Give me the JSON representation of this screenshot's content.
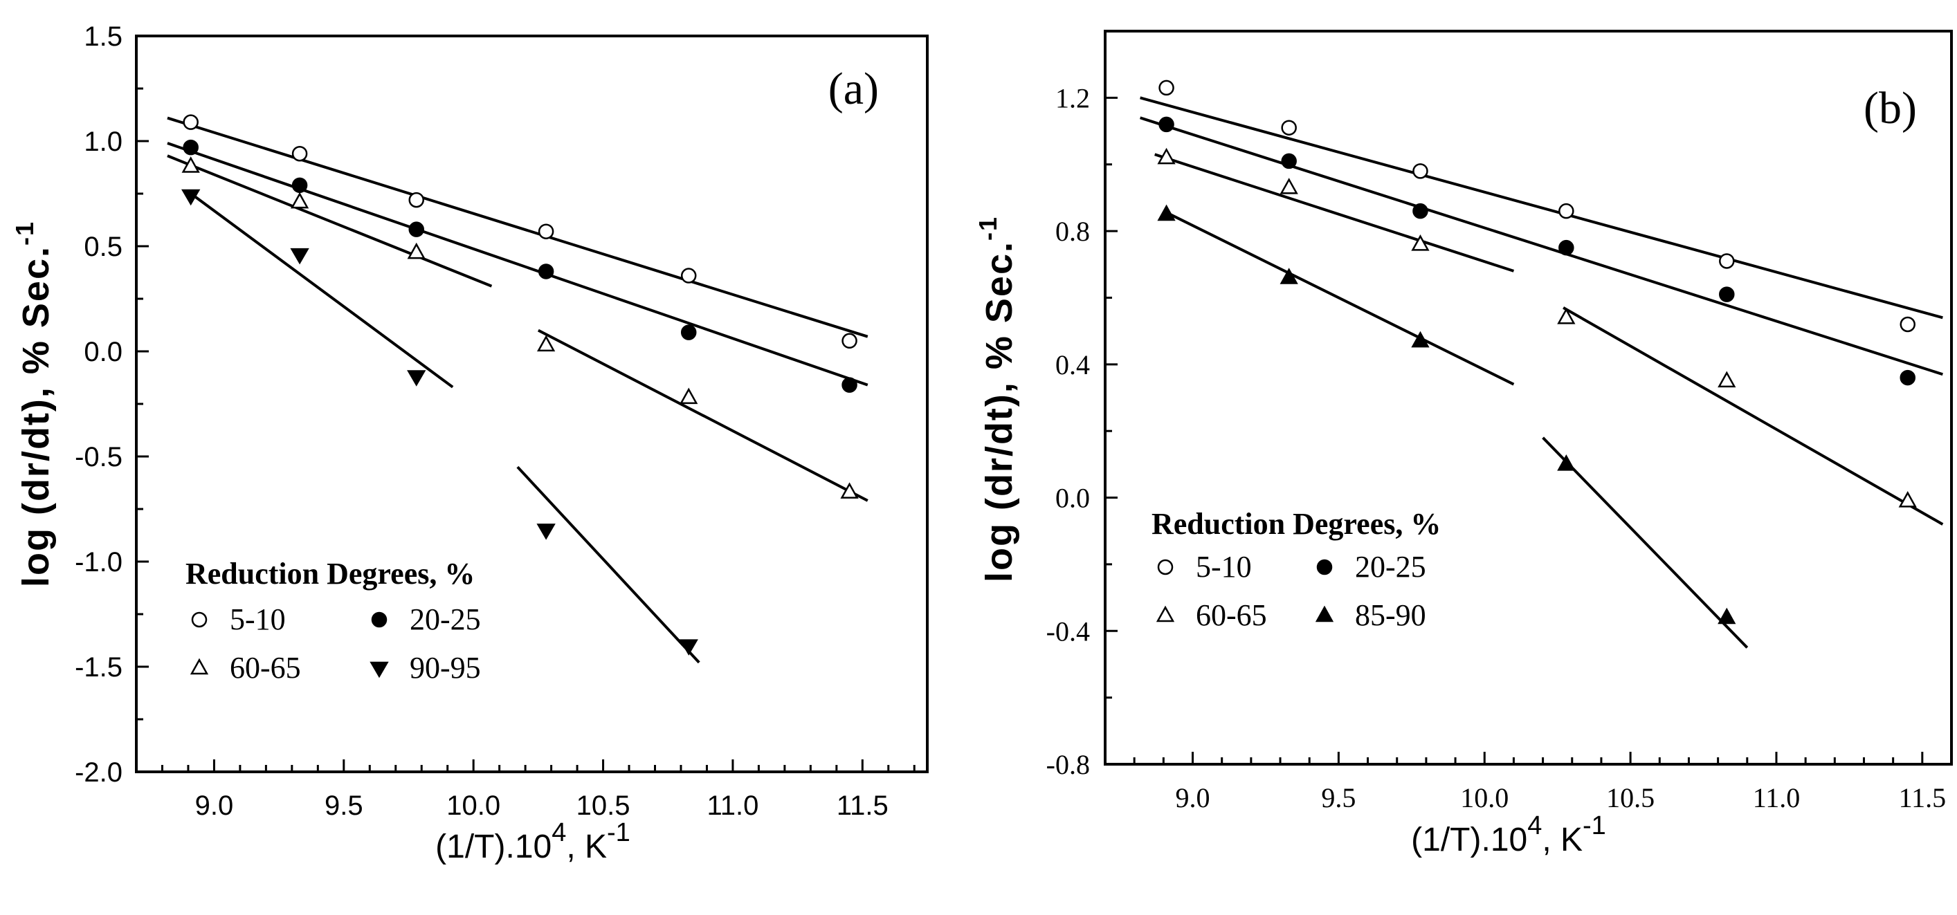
{
  "chart_data": [
    {
      "type": "scatter",
      "panel_label": "(a)",
      "xlabel": "(1/T).10",
      "xlabel_sup": "4",
      "xlabel_unit": ", K",
      "xlabel_unit_sup": "-1",
      "ylabel": "log  (dr/dt),  % Sec.",
      "ylabel_sup": "-1",
      "xlim": [
        8.7,
        11.75
      ],
      "ylim": [
        -2.0,
        1.5
      ],
      "xticks": [
        9.0,
        9.5,
        10.0,
        10.5,
        11.0,
        11.5
      ],
      "xtick_labels": [
        "9.0",
        "9.5",
        "10.0",
        "10.5",
        "11.0",
        "11.5"
      ],
      "yticks": [
        -2.0,
        -1.5,
        -1.0,
        -0.5,
        0.0,
        0.5,
        1.0,
        1.5
      ],
      "ytick_labels": [
        "-2.0",
        "-1.5",
        "-1.0",
        "-0.5",
        "0.0",
        "0.5",
        "1.0",
        "1.5"
      ],
      "legend_title": "Reduction Degrees, %",
      "legend_position": "bottom-left",
      "series": [
        {
          "name": "5-10",
          "marker": "open-circle",
          "x": [
            8.91,
            9.33,
            9.78,
            10.28,
            10.83,
            11.45
          ],
          "y": [
            1.09,
            0.94,
            0.72,
            0.57,
            0.36,
            0.05
          ]
        },
        {
          "name": "20-25",
          "marker": "filled-circle",
          "x": [
            8.91,
            9.33,
            9.78,
            10.28,
            10.83,
            11.45
          ],
          "y": [
            0.97,
            0.79,
            0.58,
            0.38,
            0.09,
            -0.16
          ]
        },
        {
          "name": "60-65",
          "marker": "open-triangle-up",
          "x": [
            8.91,
            9.33,
            9.78,
            10.28,
            10.83,
            11.45
          ],
          "y": [
            0.88,
            0.71,
            0.47,
            0.03,
            -0.22,
            -0.67
          ]
        },
        {
          "name": "90-95",
          "marker": "filled-triangle-down",
          "x": [
            8.91,
            9.33,
            9.78,
            10.28,
            10.83
          ],
          "y": [
            0.74,
            0.46,
            -0.12,
            -0.85,
            -1.4
          ]
        }
      ],
      "fit_lines": [
        {
          "series": "5-10",
          "x": [
            8.82,
            11.52
          ],
          "y": [
            1.11,
            0.07
          ]
        },
        {
          "series": "20-25",
          "x": [
            8.82,
            11.52
          ],
          "y": [
            0.99,
            -0.16
          ]
        },
        {
          "series": "60-65",
          "x": [
            8.82,
            10.07
          ],
          "y": [
            0.93,
            0.31
          ]
        },
        {
          "series": "60-65",
          "x": [
            10.25,
            11.52
          ],
          "y": [
            0.1,
            -0.71
          ]
        },
        {
          "series": "90-95",
          "x": [
            8.9,
            9.92
          ],
          "y": [
            0.76,
            -0.17
          ]
        },
        {
          "series": "90-95",
          "x": [
            10.17,
            10.87
          ],
          "y": [
            -0.55,
            -1.48
          ]
        }
      ]
    },
    {
      "type": "scatter",
      "panel_label": "(b)",
      "xlabel": "(1/T).10",
      "xlabel_sup": "4",
      "xlabel_unit": ", K",
      "xlabel_unit_sup": "-1",
      "ylabel": "log (dr/dt),  % Sec.",
      "ylabel_sup": "-1",
      "xlim": [
        8.7,
        11.6
      ],
      "ylim": [
        -0.8,
        1.4
      ],
      "xticks": [
        9.0,
        9.5,
        10.0,
        10.5,
        11.0,
        11.5
      ],
      "xtick_labels": [
        "9.0",
        "9.5",
        "10.0",
        "10.5",
        "11.0",
        "11.5"
      ],
      "yticks": [
        -0.8,
        -0.4,
        0.0,
        0.4,
        0.8,
        1.2
      ],
      "ytick_labels": [
        "-0.8",
        "-0.4",
        "0.0",
        "0.4",
        "0.8",
        "1.2"
      ],
      "legend_title": "Reduction Degrees, %",
      "legend_position": "bottom-left",
      "series": [
        {
          "name": "5-10",
          "marker": "open-circle",
          "x": [
            8.91,
            9.33,
            9.78,
            10.28,
            10.83,
            11.45
          ],
          "y": [
            1.23,
            1.11,
            0.98,
            0.86,
            0.71,
            0.52
          ]
        },
        {
          "name": "20-25",
          "marker": "filled-circle",
          "x": [
            8.91,
            9.33,
            9.78,
            10.28,
            10.83,
            11.45
          ],
          "y": [
            1.12,
            1.01,
            0.86,
            0.75,
            0.61,
            0.36
          ]
        },
        {
          "name": "60-65",
          "marker": "open-triangle-up",
          "x": [
            8.91,
            9.33,
            9.78,
            10.28,
            10.83,
            11.45
          ],
          "y": [
            1.02,
            0.93,
            0.76,
            0.54,
            0.35,
            -0.01
          ]
        },
        {
          "name": "85-90",
          "marker": "filled-triangle-up",
          "x": [
            8.91,
            9.33,
            9.78,
            10.28,
            10.83
          ],
          "y": [
            0.85,
            0.66,
            0.47,
            0.1,
            -0.36
          ]
        }
      ],
      "fit_lines": [
        {
          "series": "5-10",
          "x": [
            8.82,
            11.57
          ],
          "y": [
            1.2,
            0.54
          ]
        },
        {
          "series": "20-25",
          "x": [
            8.82,
            11.57
          ],
          "y": [
            1.14,
            0.37
          ]
        },
        {
          "series": "60-65",
          "x": [
            8.87,
            10.1
          ],
          "y": [
            1.03,
            0.68
          ]
        },
        {
          "series": "60-65",
          "x": [
            10.27,
            11.57
          ],
          "y": [
            0.57,
            -0.08
          ]
        },
        {
          "series": "85-90",
          "x": [
            8.9,
            10.1
          ],
          "y": [
            0.86,
            0.34
          ]
        },
        {
          "series": "85-90",
          "x": [
            10.2,
            10.9
          ],
          "y": [
            0.18,
            -0.45
          ]
        }
      ]
    }
  ]
}
